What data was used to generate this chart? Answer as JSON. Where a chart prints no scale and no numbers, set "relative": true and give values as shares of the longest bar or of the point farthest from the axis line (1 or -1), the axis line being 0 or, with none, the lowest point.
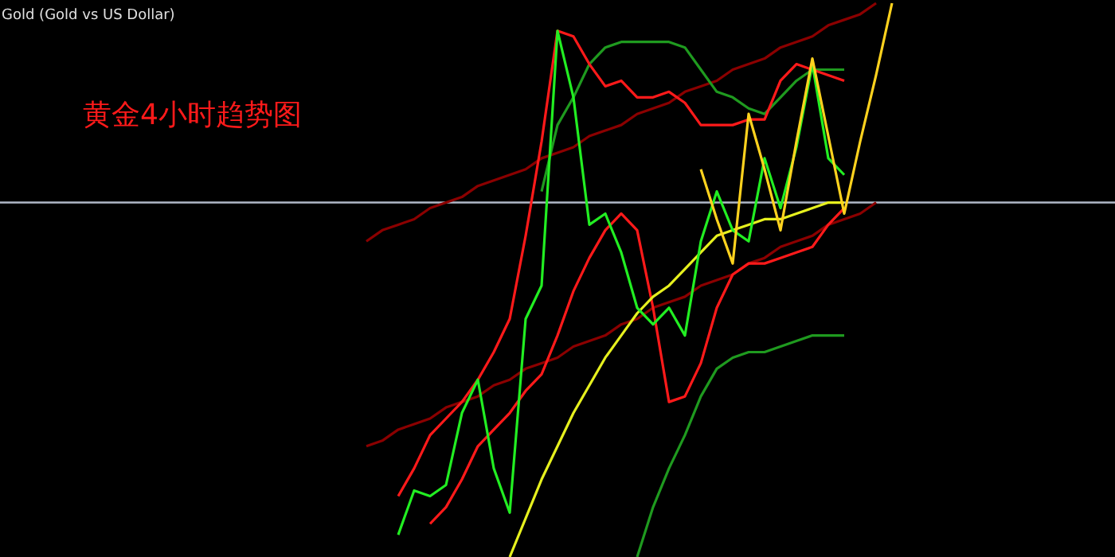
{
  "chart_data": {
    "type": "line",
    "title": "Gold (Gold vs US Dollar)",
    "relative": true,
    "categories": [
      null,
      null,
      null,
      null,
      null,
      null,
      null,
      null,
      null,
      null,
      null,
      null,
      null,
      null,
      null,
      null,
      null,
      null,
      null,
      null,
      null,
      null,
      null,
      null,
      null,
      null,
      null,
      null,
      null,
      null,
      null,
      null,
      null,
      null,
      null
    ],
    "annotations": [
      "黄金4小时趋势图"
    ],
    "ref_lines": [
      {
        "axis": "y",
        "value": 0.64,
        "color": "#b0b8c8"
      }
    ],
    "series": [
      {
        "color": "#8b0000",
        "values": [
          null,
          0.57,
          0.59,
          0.6,
          0.61,
          0.63,
          0.64,
          0.65,
          0.67,
          0.68,
          0.69,
          0.7,
          0.72,
          0.73,
          0.74,
          0.76,
          0.77,
          0.78,
          0.8,
          0.81,
          0.82,
          0.84,
          0.85,
          0.86,
          0.88,
          0.89,
          0.9,
          0.92,
          0.93,
          0.94,
          0.96,
          0.97,
          0.98,
          1.0,
          null
        ]
      },
      {
        "color": "#8b0000",
        "values": [
          null,
          0.2,
          0.21,
          0.23,
          0.24,
          0.25,
          0.27,
          0.28,
          0.29,
          0.31,
          0.32,
          0.34,
          0.35,
          0.36,
          0.38,
          0.39,
          0.4,
          0.42,
          0.43,
          0.45,
          0.46,
          0.47,
          0.49,
          0.5,
          0.51,
          0.53,
          0.54,
          0.56,
          0.57,
          0.58,
          0.6,
          0.61,
          0.62,
          0.64,
          null
        ]
      },
      {
        "color": "#1f9a1f",
        "values": [
          null,
          null,
          null,
          null,
          null,
          null,
          null,
          null,
          null,
          null,
          null,
          null,
          0.66,
          0.78,
          0.83,
          0.89,
          0.92,
          0.93,
          0.93,
          0.93,
          0.93,
          0.92,
          0.88,
          0.84,
          0.83,
          0.81,
          0.8,
          0.83,
          0.86,
          0.88,
          0.88,
          0.88,
          null,
          null,
          null
        ]
      },
      {
        "color": "#1f9a1f",
        "values": [
          null,
          null,
          null,
          null,
          null,
          null,
          null,
          null,
          null,
          null,
          null,
          null,
          null,
          null,
          null,
          null,
          null,
          null,
          0,
          0.09,
          0.16,
          0.22,
          0.29,
          0.34,
          0.36,
          0.37,
          0.37,
          0.38,
          0.39,
          0.4,
          0.4,
          0.4,
          null,
          null,
          null
        ]
      },
      {
        "color": "#ff1a1a",
        "values": [
          null,
          null,
          null,
          0.11,
          0.16,
          0.22,
          0.25,
          0.28,
          0.32,
          0.37,
          0.43,
          0.58,
          0.75,
          0.95,
          0.94,
          0.89,
          0.85,
          0.86,
          0.83,
          0.83,
          0.84,
          0.82,
          0.78,
          0.78,
          0.78,
          0.79,
          0.79,
          0.86,
          0.89,
          0.88,
          0.87,
          0.86,
          null,
          null,
          null
        ]
      },
      {
        "color": "#ff1a1a",
        "values": [
          null,
          null,
          null,
          null,
          null,
          0.06,
          0.09,
          0.14,
          0.2,
          0.23,
          0.26,
          0.3,
          0.33,
          0.4,
          0.48,
          0.54,
          0.59,
          0.62,
          0.59,
          0.45,
          0.28,
          0.29,
          0.35,
          0.45,
          0.51,
          0.53,
          0.53,
          0.54,
          0.55,
          0.56,
          0.6,
          0.63,
          null,
          null,
          null
        ]
      },
      {
        "color": "#e6f01e",
        "values": [
          null,
          null,
          null,
          null,
          null,
          null,
          null,
          null,
          null,
          null,
          0,
          0.07,
          0.14,
          0.2,
          0.26,
          0.31,
          0.36,
          0.4,
          0.44,
          0.47,
          0.49,
          0.52,
          0.55,
          0.58,
          0.59,
          0.6,
          0.61,
          0.61,
          0.62,
          0.63,
          0.64,
          0.64,
          null,
          null,
          null
        ]
      },
      {
        "color": "#22ee22",
        "values": [
          null,
          null,
          null,
          0.04,
          0.12,
          0.11,
          0.13,
          0.26,
          0.32,
          0.16,
          0.08,
          0.43,
          0.49,
          0.95,
          0.83,
          0.6,
          0.62,
          0.55,
          0.45,
          0.42,
          0.45,
          0.4,
          0.57,
          0.66,
          0.59,
          0.57,
          0.72,
          0.63,
          0.74,
          0.89,
          0.72,
          0.69,
          null,
          null,
          null
        ]
      },
      {
        "color": "#ffd21e",
        "values": [
          null,
          null,
          null,
          null,
          null,
          null,
          null,
          null,
          null,
          null,
          null,
          null,
          null,
          null,
          null,
          null,
          null,
          null,
          null,
          null,
          null,
          null,
          0.7,
          0.61,
          0.53,
          0.8,
          0.7,
          0.59,
          0.75,
          0.9,
          0.76,
          0.62,
          0.75,
          0.87,
          1.0
        ]
      }
    ]
  }
}
